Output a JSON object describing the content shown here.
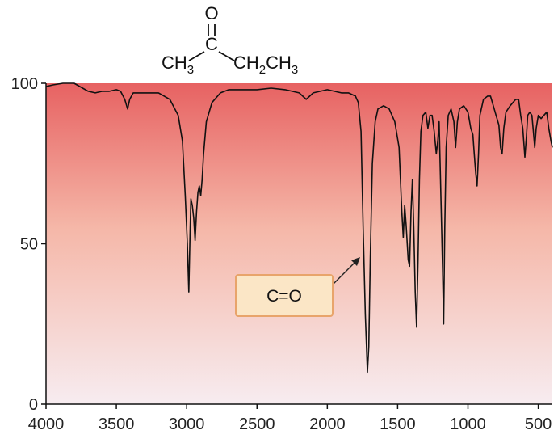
{
  "molecule": {
    "oxygen": "O",
    "carbon": "C",
    "left_group": {
      "main": "CH",
      "sub": "3"
    },
    "right_group": [
      {
        "main": "CH",
        "sub": "2"
      },
      {
        "main": "CH",
        "sub": "3"
      }
    ]
  },
  "chart_data": {
    "type": "line",
    "xlabel": "",
    "ylabel": "",
    "xlim": [
      4000,
      400
    ],
    "ylim": [
      0,
      100
    ],
    "x_reversed": true,
    "x_ticks": [
      4000,
      3500,
      3000,
      2500,
      2000,
      1500,
      1000,
      500
    ],
    "x_tick_labels": [
      "4000",
      "3500",
      "3000",
      "2500",
      "2000",
      "1500",
      "1000",
      "500"
    ],
    "y_ticks": [
      0,
      50,
      100
    ],
    "y_tick_labels": [
      "0",
      "50",
      "100"
    ],
    "annotation": {
      "label": "C=O",
      "target_x": 1715,
      "target_y": 10
    },
    "series": [
      {
        "points": [
          [
            4000,
            99
          ],
          [
            3950,
            99.5
          ],
          [
            3880,
            100
          ],
          [
            3800,
            100
          ],
          [
            3760,
            99
          ],
          [
            3700,
            97.5
          ],
          [
            3650,
            97
          ],
          [
            3600,
            97.5
          ],
          [
            3550,
            97.5
          ],
          [
            3500,
            98
          ],
          [
            3470,
            97.5
          ],
          [
            3440,
            95
          ],
          [
            3420,
            92
          ],
          [
            3405,
            95
          ],
          [
            3380,
            97
          ],
          [
            3300,
            97
          ],
          [
            3200,
            97
          ],
          [
            3120,
            95
          ],
          [
            3060,
            90
          ],
          [
            3030,
            82
          ],
          [
            3010,
            65
          ],
          [
            2995,
            50
          ],
          [
            2985,
            35
          ],
          [
            2975,
            55
          ],
          [
            2970,
            64
          ],
          [
            2960,
            62
          ],
          [
            2950,
            58
          ],
          [
            2940,
            51
          ],
          [
            2930,
            60
          ],
          [
            2920,
            66
          ],
          [
            2910,
            68
          ],
          [
            2900,
            65
          ],
          [
            2890,
            70
          ],
          [
            2880,
            78
          ],
          [
            2860,
            88
          ],
          [
            2820,
            94
          ],
          [
            2760,
            97
          ],
          [
            2700,
            98
          ],
          [
            2500,
            98
          ],
          [
            2400,
            98.5
          ],
          [
            2300,
            98
          ],
          [
            2200,
            97
          ],
          [
            2150,
            95
          ],
          [
            2100,
            97
          ],
          [
            2000,
            98
          ],
          [
            1900,
            97
          ],
          [
            1850,
            97
          ],
          [
            1800,
            96
          ],
          [
            1780,
            94
          ],
          [
            1760,
            85
          ],
          [
            1745,
            55
          ],
          [
            1730,
            28
          ],
          [
            1715,
            10
          ],
          [
            1705,
            18
          ],
          [
            1695,
            45
          ],
          [
            1680,
            75
          ],
          [
            1660,
            88
          ],
          [
            1640,
            92
          ],
          [
            1600,
            93
          ],
          [
            1560,
            92
          ],
          [
            1520,
            88
          ],
          [
            1490,
            80
          ],
          [
            1470,
            60
          ],
          [
            1460,
            52
          ],
          [
            1450,
            62
          ],
          [
            1440,
            56
          ],
          [
            1425,
            45
          ],
          [
            1415,
            43
          ],
          [
            1405,
            60
          ],
          [
            1395,
            70
          ],
          [
            1385,
            55
          ],
          [
            1375,
            35
          ],
          [
            1365,
            24
          ],
          [
            1355,
            45
          ],
          [
            1345,
            70
          ],
          [
            1335,
            85
          ],
          [
            1320,
            90
          ],
          [
            1300,
            91
          ],
          [
            1285,
            86
          ],
          [
            1270,
            90
          ],
          [
            1255,
            90
          ],
          [
            1240,
            85
          ],
          [
            1225,
            78
          ],
          [
            1215,
            82
          ],
          [
            1205,
            88
          ],
          [
            1195,
            70
          ],
          [
            1180,
            42
          ],
          [
            1173,
            25
          ],
          [
            1165,
            55
          ],
          [
            1155,
            80
          ],
          [
            1140,
            90
          ],
          [
            1120,
            92
          ],
          [
            1100,
            88
          ],
          [
            1088,
            80
          ],
          [
            1075,
            88
          ],
          [
            1060,
            92
          ],
          [
            1030,
            93
          ],
          [
            1000,
            91
          ],
          [
            980,
            86
          ],
          [
            965,
            84
          ],
          [
            955,
            78
          ],
          [
            945,
            72
          ],
          [
            935,
            68
          ],
          [
            925,
            78
          ],
          [
            915,
            90
          ],
          [
            890,
            95
          ],
          [
            860,
            96
          ],
          [
            840,
            96
          ],
          [
            820,
            93
          ],
          [
            800,
            90
          ],
          [
            780,
            87
          ],
          [
            768,
            80
          ],
          [
            757,
            78
          ],
          [
            745,
            86
          ],
          [
            730,
            91
          ],
          [
            700,
            93
          ],
          [
            680,
            94
          ],
          [
            660,
            95
          ],
          [
            640,
            95
          ],
          [
            625,
            90
          ],
          [
            610,
            86
          ],
          [
            595,
            77
          ],
          [
            585,
            83
          ],
          [
            575,
            90
          ],
          [
            560,
            91
          ],
          [
            545,
            90
          ],
          [
            535,
            85
          ],
          [
            525,
            80
          ],
          [
            515,
            86
          ],
          [
            500,
            90
          ],
          [
            480,
            89
          ],
          [
            460,
            90
          ],
          [
            440,
            91
          ],
          [
            425,
            86
          ],
          [
            410,
            82
          ],
          [
            400,
            80
          ]
        ]
      }
    ]
  },
  "colors": {
    "plot_top": "#e76262",
    "plot_mid": "#f5b7a8",
    "plot_bottom": "#f7ecf0",
    "trace": "#111111",
    "label_fill": "#fbe6c6",
    "label_border": "#e8a46b"
  }
}
